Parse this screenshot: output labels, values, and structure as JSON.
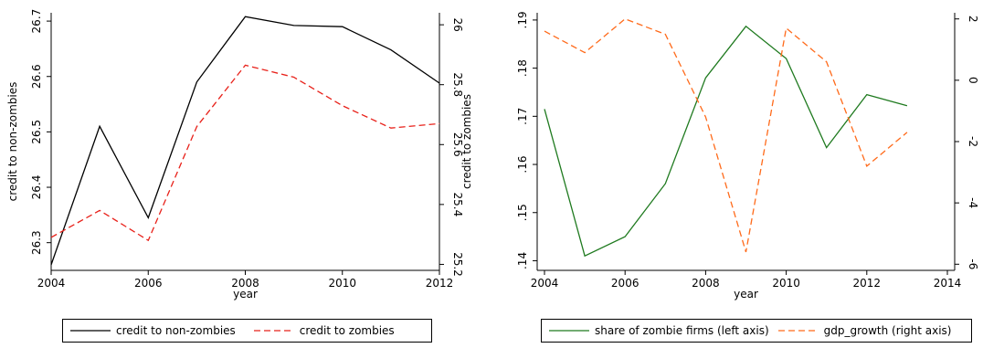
{
  "chart_data": [
    {
      "type": "line",
      "xlabel": "year",
      "ylabel_left": "credit to non-zombies",
      "ylabel_right": "credit to zombies",
      "x_ticks": [
        2004,
        2006,
        2008,
        2010,
        2012
      ],
      "y_left_ticks": [
        "26.3",
        "26.4",
        "26.5",
        "26.6",
        "26.7"
      ],
      "y_right_ticks": [
        "25.2",
        "25.4",
        "25.6",
        "25.8",
        "26"
      ],
      "xlim": [
        2004,
        2012
      ],
      "ylim_left": [
        26.25,
        26.715
      ],
      "ylim_right": [
        25.18,
        26.04
      ],
      "series": [
        {
          "name": "credit to non-zombies",
          "axis": "left",
          "color": "#000000",
          "dash": "solid",
          "x": [
            2004,
            2005,
            2006,
            2007,
            2008,
            2009,
            2010,
            2011,
            2012
          ],
          "values": [
            26.26,
            26.51,
            26.345,
            26.59,
            26.708,
            26.692,
            26.69,
            26.648,
            26.588
          ]
        },
        {
          "name": "credit to zombies",
          "axis": "right",
          "color": "#e8211a",
          "dash": "dashed",
          "x": [
            2004,
            2005,
            2006,
            2007,
            2008,
            2009,
            2010,
            2011,
            2012
          ],
          "values": [
            25.29,
            25.38,
            25.28,
            25.66,
            25.865,
            25.825,
            25.73,
            25.655,
            25.67
          ]
        }
      ]
    },
    {
      "type": "line",
      "xlabel": "year",
      "ylabel_left": "",
      "ylabel_right": "",
      "x_ticks": [
        2004,
        2006,
        2008,
        2010,
        2012,
        2014
      ],
      "y_left_ticks": [
        ".14",
        ".15",
        ".16",
        ".17",
        ".18",
        ".19"
      ],
      "y_right_ticks": [
        "-6",
        "-4",
        "-2",
        "0",
        "2"
      ],
      "xlim": [
        2004,
        2014
      ],
      "ylim_left": [
        0.138,
        0.1915
      ],
      "ylim_right": [
        -6.2,
        2.2
      ],
      "series": [
        {
          "name": "share of zombie firms (left axis)",
          "axis": "left",
          "color": "#1f7a1f",
          "dash": "solid",
          "x": [
            2004,
            2005,
            2006,
            2007,
            2008,
            2009,
            2010,
            2011,
            2012,
            2013
          ],
          "values": [
            0.1715,
            0.141,
            0.145,
            0.156,
            0.178,
            0.1887,
            0.182,
            0.1635,
            0.1745,
            0.1722
          ]
        },
        {
          "name": "gdp_growth (right axis)",
          "axis": "right",
          "color": "#ff6a1a",
          "dash": "dashed",
          "x": [
            2004,
            2005,
            2006,
            2007,
            2008,
            2009,
            2010,
            2011,
            2012,
            2013
          ],
          "values": [
            1.6,
            0.9,
            2.0,
            1.5,
            -1.2,
            -5.6,
            1.7,
            0.6,
            -2.8,
            -1.7
          ]
        }
      ]
    }
  ]
}
